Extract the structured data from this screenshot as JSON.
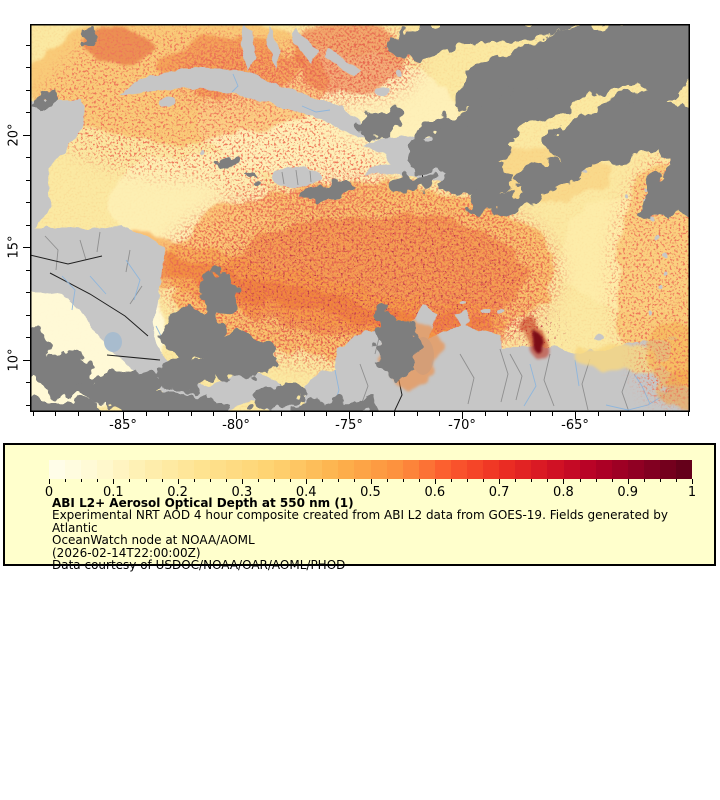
{
  "figure": {
    "background": "#ffffff"
  },
  "map": {
    "extent_note": "GOES-19 ABI aerosol optical depth scene over the Caribbean",
    "extent": {
      "lon_min": -89.1,
      "lon_max": -59.9,
      "lat_min": 7.7,
      "lat_max": 24.9
    },
    "axes": {
      "x": {
        "major": [
          {
            "value": -85,
            "label": "-85°"
          },
          {
            "value": -80,
            "label": "-80°"
          },
          {
            "value": -75,
            "label": "-75°"
          },
          {
            "value": -70,
            "label": "-70°"
          },
          {
            "value": -65,
            "label": "-65°"
          }
        ],
        "minor": [
          -89,
          -88,
          -87,
          -86,
          -85,
          -84,
          -83,
          -82,
          -81,
          -80,
          -79,
          -78,
          -77,
          -76,
          -75,
          -74,
          -73,
          -72,
          -71,
          -70,
          -69,
          -68,
          -67,
          -66,
          -65,
          -64,
          -63,
          -62,
          -61,
          -60
        ]
      },
      "y": {
        "major": [
          {
            "value": 20,
            "label": "20°"
          },
          {
            "value": 15,
            "label": "15°"
          },
          {
            "value": 10,
            "label": "10°"
          }
        ],
        "minor": [
          24,
          23,
          22,
          21,
          20,
          19,
          18,
          17,
          16,
          15,
          14,
          13,
          12,
          11,
          10,
          9,
          8
        ]
      }
    },
    "palette": {
      "ocean_low_aod": "#FBE9A2",
      "land": "#C6C6C6",
      "cloud_no_data": "#7E7E7E",
      "admin_border": "#8F8F8F",
      "country_border_dark": "#1F1F1F",
      "river": "#8FB6DC",
      "frame": "#000000"
    }
  },
  "legend": {
    "background": "#FFFFCC",
    "border_color": "#000000",
    "title": "ABI L2+ Aerosol Optical Depth at 550 nm (1)",
    "description_line1": "Experimental NRT AOD 4 hour composite created from ABI L2 data from GOES-19. Fields generated by Atlantic",
    "description_line2": "OceanWatch node at NOAA/AOML",
    "timestamp": "(2026-02-14T22:00:00Z)",
    "courtesy": "Data courtesy of USDOC/NOAA/OAR/AOML/PHOD",
    "colorbar": {
      "min": 0,
      "max": 1,
      "step_blocks": 40,
      "minor_tick_interval": 0.025,
      "major_tick_interval": 0.1,
      "tick_labels": [
        "0",
        "0.1",
        "0.2",
        "0.3",
        "0.4",
        "0.5",
        "0.6",
        "0.7",
        "0.8",
        "0.9",
        "1"
      ],
      "colormap_name": "YlOrRd",
      "stops": [
        [
          0.0,
          "#FFFEEC"
        ],
        [
          0.08,
          "#FFF9D0"
        ],
        [
          0.15,
          "#FEEFAF"
        ],
        [
          0.25,
          "#FEE18C"
        ],
        [
          0.35,
          "#FED270"
        ],
        [
          0.45,
          "#FDB24C"
        ],
        [
          0.55,
          "#FD8D3C"
        ],
        [
          0.62,
          "#FC5B2E"
        ],
        [
          0.7,
          "#EE3123"
        ],
        [
          0.78,
          "#D41324"
        ],
        [
          0.85,
          "#B30026"
        ],
        [
          0.92,
          "#8C0023"
        ],
        [
          1.0,
          "#5E0018"
        ]
      ]
    }
  }
}
